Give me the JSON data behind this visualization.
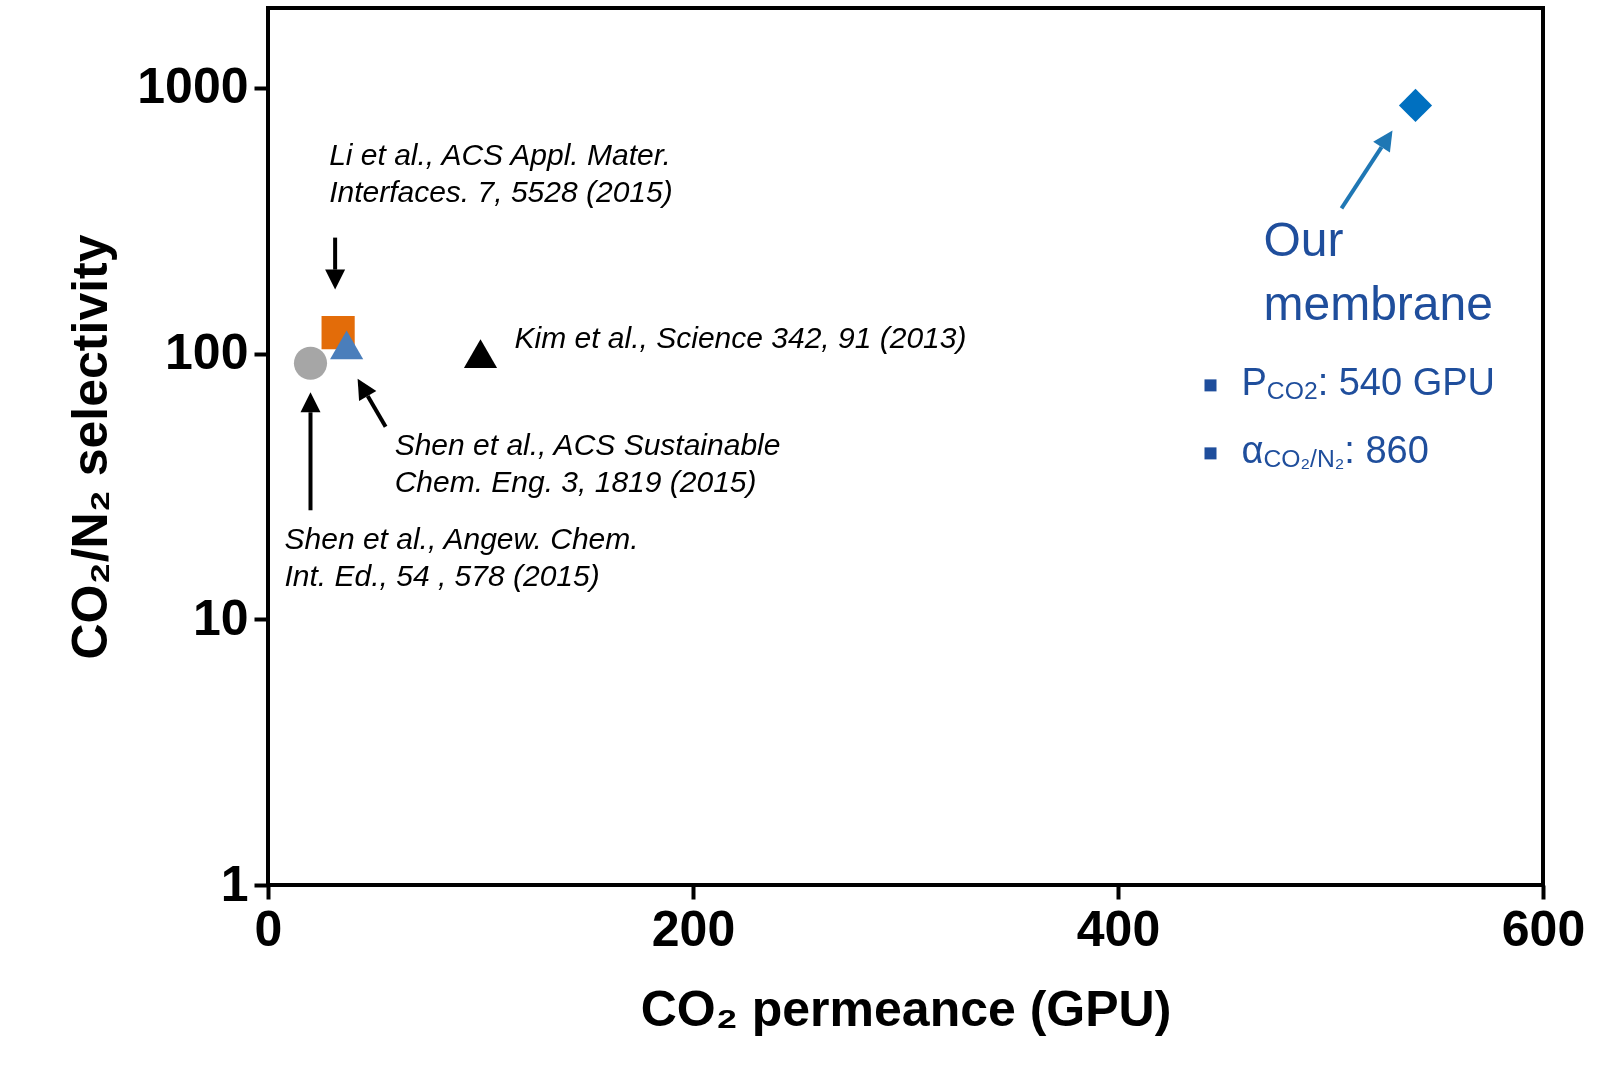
{
  "chart_data": {
    "type": "scatter",
    "xlabel": "CO₂ permeance (GPU)",
    "ylabel": "CO₂/N₂ selectivity",
    "xlim": [
      0,
      600
    ],
    "xticks": [
      0,
      200,
      400,
      600
    ],
    "ylim": [
      1,
      2000
    ],
    "yticks": [
      1,
      10,
      100,
      1000
    ],
    "log": "y",
    "grid": false,
    "series": [
      {
        "x": [
          20
        ],
        "values": [
          92
        ],
        "color": "#a6a6a6",
        "marker": "circle"
      },
      {
        "x": [
          33
        ],
        "values": [
          120
        ],
        "color": "#e36c09",
        "marker": "square"
      },
      {
        "x": [
          37
        ],
        "values": [
          108
        ],
        "color": "#4a7ebb",
        "marker": "triangle"
      },
      {
        "x": [
          100
        ],
        "values": [
          100
        ],
        "color": "#000000",
        "marker": "triangle"
      },
      {
        "x": [
          540
        ],
        "values": [
          860
        ],
        "color": "#0070c0",
        "marker": "diamond"
      }
    ],
    "annotations": [
      "Li et al., ACS Appl. Mater.\nInterfaces. 7, 5528 (2015)",
      {
        "text": "Kim et al., Science 342, 91 (2013)",
        "x": 100,
        "y": 100
      },
      "Shen et al., ACS Sustainable\nChem. Eng. 3, 1819 (2015)",
      "Shen et al., Angew. Chem.\nInt. Ed., 54 , 578 (2015)",
      {
        "text": "Our\nmembrane",
        "x": 540,
        "y": 860
      },
      "P$_{CO2}$: 540 GPU",
      "α$_{CO₂/N₂}$: 860"
    ]
  }
}
